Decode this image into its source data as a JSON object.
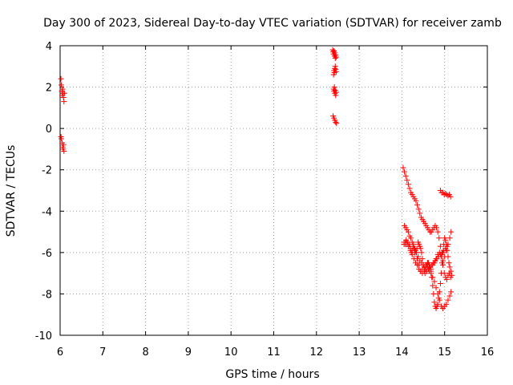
{
  "chart_data": {
    "type": "scatter",
    "title": "Day 300 of 2023, Sidereal Day-to-day VTEC variation (SDTVAR) for receiver zamb",
    "xlabel": "GPS time / hours",
    "ylabel": "SDTVAR / TECUs",
    "xlim": [
      6,
      16
    ],
    "ylim": [
      -10,
      4
    ],
    "xticks": [
      6,
      7,
      8,
      9,
      10,
      11,
      12,
      13,
      14,
      15,
      16
    ],
    "yticks": [
      -10,
      -8,
      -6,
      -4,
      -2,
      0,
      2,
      4
    ],
    "xtick_labels": [
      "6",
      "7",
      "8",
      "9",
      "10",
      "11",
      "12",
      "13",
      "14",
      "15",
      "16"
    ],
    "ytick_labels": [
      "-10",
      "-8",
      "-6",
      "-4",
      "-2",
      "0",
      "2",
      "4"
    ],
    "grid": true,
    "marker": "plus",
    "color": "#ff0000",
    "series": [
      {
        "name": "SDTVAR",
        "x": [
          6.02,
          6.03,
          6.04,
          6.05,
          6.06,
          6.07,
          6.08,
          6.09,
          6.1,
          6.02,
          6.03,
          6.05,
          6.06,
          6.07,
          6.08,
          6.09,
          12.38,
          12.39,
          12.4,
          12.41,
          12.42,
          12.43,
          12.44,
          12.45,
          12.46,
          12.4,
          12.41,
          12.42,
          12.43,
          12.44,
          12.45,
          12.46,
          12.4,
          12.41,
          12.42,
          12.43,
          12.44,
          12.45,
          12.46,
          12.39,
          12.41,
          12.43,
          12.45,
          12.47,
          14.03,
          14.06,
          14.09,
          14.12,
          14.15,
          14.18,
          14.21,
          14.24,
          14.27,
          14.3,
          14.33,
          14.36,
          14.39,
          14.42,
          14.45,
          14.48,
          14.51,
          14.54,
          14.57,
          14.6,
          14.63,
          14.66,
          14.69,
          14.72,
          14.75,
          14.78,
          14.81,
          14.84,
          14.87,
          14.9,
          14.93,
          14.96,
          14.99,
          15.02,
          15.05,
          15.08,
          15.11,
          15.14,
          15.17,
          15.15,
          15.12,
          15.1,
          15.08,
          15.06,
          15.04,
          15.02,
          15.0,
          14.98,
          14.96,
          14.94,
          14.92,
          14.9,
          14.88,
          14.86,
          14.84,
          14.82,
          14.8,
          14.78,
          14.76,
          14.74,
          14.72,
          14.7,
          14.68,
          14.66,
          14.64,
          14.62,
          14.6,
          14.58,
          14.56,
          14.54,
          14.52,
          14.5,
          14.48,
          14.46,
          14.44,
          14.42,
          14.4,
          14.38,
          14.35,
          14.32,
          14.3,
          14.28,
          14.26,
          14.24,
          14.22,
          14.2,
          14.18,
          14.16,
          14.14,
          14.12,
          14.1,
          14.08,
          14.05,
          14.06,
          14.09,
          14.12,
          14.15,
          14.18,
          14.21,
          14.24,
          14.27,
          14.3,
          14.33,
          14.36,
          14.4,
          14.44,
          14.48,
          14.52,
          14.56,
          14.6,
          14.64,
          14.68,
          14.72,
          14.76,
          14.8,
          14.84,
          14.88,
          14.92,
          14.96,
          15.0,
          15.04,
          15.08,
          15.12,
          15.15,
          14.9,
          14.93,
          14.96,
          14.99,
          15.02,
          15.05,
          15.08,
          15.11,
          15.14,
          14.05,
          14.08,
          14.12,
          14.16,
          14.2,
          14.24,
          14.28,
          14.32,
          14.36,
          14.4,
          14.44,
          14.48,
          14.52,
          14.56,
          14.6,
          14.64,
          14.68,
          14.72,
          14.76,
          14.8,
          14.84,
          14.88,
          14.92,
          14.96,
          15.0,
          15.04,
          15.08,
          15.12,
          15.15,
          14.3,
          14.34,
          14.38,
          14.42,
          14.46,
          14.5,
          14.54,
          14.58,
          14.62,
          14.66,
          14.7,
          14.74,
          14.78,
          14.82,
          14.86,
          14.9,
          14.94,
          14.98,
          15.02,
          15.06
        ],
        "y": [
          2.4,
          2.1,
          1.8,
          1.6,
          1.9,
          1.7,
          1.5,
          1.3,
          1.7,
          -0.4,
          -0.5,
          -0.7,
          -0.9,
          -1.0,
          -0.8,
          -1.1,
          3.8,
          3.7,
          3.6,
          3.75,
          3.5,
          3.65,
          3.4,
          3.55,
          3.45,
          2.6,
          2.8,
          2.7,
          2.9,
          3.0,
          2.85,
          2.75,
          1.9,
          1.8,
          2.0,
          1.7,
          1.85,
          1.6,
          1.75,
          0.6,
          0.5,
          0.4,
          0.3,
          0.25,
          -1.9,
          -2.1,
          -2.3,
          -2.5,
          -2.7,
          -2.9,
          -3.1,
          -3.2,
          -3.3,
          -3.4,
          -3.5,
          -3.7,
          -3.9,
          -4.1,
          -4.3,
          -4.4,
          -4.5,
          -4.6,
          -4.7,
          -4.8,
          -4.9,
          -5.0,
          -5.0,
          -4.9,
          -4.8,
          -4.7,
          -4.8,
          -5.0,
          -5.3,
          -5.7,
          -6.1,
          -6.6,
          -7.0,
          -7.2,
          -7.3,
          -7.1,
          -7.0,
          -7.2,
          -7.1,
          -6.9,
          -6.7,
          -6.5,
          -6.2,
          -5.9,
          -5.6,
          -5.4,
          -5.3,
          -5.6,
          -6.0,
          -6.5,
          -7.0,
          -7.5,
          -7.9,
          -8.2,
          -8.5,
          -8.6,
          -8.7,
          -8.6,
          -8.4,
          -8.0,
          -7.6,
          -7.2,
          -6.9,
          -6.7,
          -6.6,
          -6.5,
          -6.5,
          -6.6,
          -6.8,
          -7.0,
          -6.9,
          -6.6,
          -6.3,
          -6.0,
          -5.8,
          -5.7,
          -5.6,
          -5.5,
          -5.8,
          -5.9,
          -6.0,
          -5.8,
          -5.7,
          -5.9,
          -6.0,
          -5.8,
          -5.6,
          -5.7,
          -5.5,
          -5.6,
          -5.4,
          -5.5,
          -5.6,
          -4.7,
          -4.8,
          -4.9,
          -5.0,
          -5.2,
          -5.3,
          -5.5,
          -5.6,
          -5.8,
          -6.0,
          -6.3,
          -6.6,
          -6.9,
          -7.0,
          -6.8,
          -6.6,
          -6.5,
          -6.7,
          -6.8,
          -6.6,
          -6.5,
          -6.3,
          -6.1,
          -6.0,
          -6.2,
          -6.4,
          -6.2,
          -5.9,
          -5.6,
          -5.3,
          -5.0,
          -3.0,
          -3.1,
          -3.1,
          -3.2,
          -3.15,
          -3.2,
          -3.25,
          -3.2,
          -3.3,
          -5.5,
          -5.6,
          -5.5,
          -5.7,
          -5.9,
          -6.1,
          -6.3,
          -6.5,
          -6.6,
          -6.8,
          -6.9,
          -6.8,
          -6.7,
          -6.6,
          -6.7,
          -6.9,
          -7.0,
          -7.2,
          -7.4,
          -7.7,
          -8.0,
          -8.3,
          -8.6,
          -8.7,
          -8.6,
          -8.5,
          -8.3,
          -8.1,
          -7.9,
          -5.8,
          -6.0,
          -6.2,
          -6.4,
          -6.5,
          -6.6,
          -6.8,
          -6.9,
          -6.8,
          -6.7,
          -6.6,
          -6.5,
          -6.4,
          -6.3,
          -6.2,
          -6.1,
          -6.0,
          -5.9,
          -5.8,
          -5.7
        ]
      }
    ]
  }
}
